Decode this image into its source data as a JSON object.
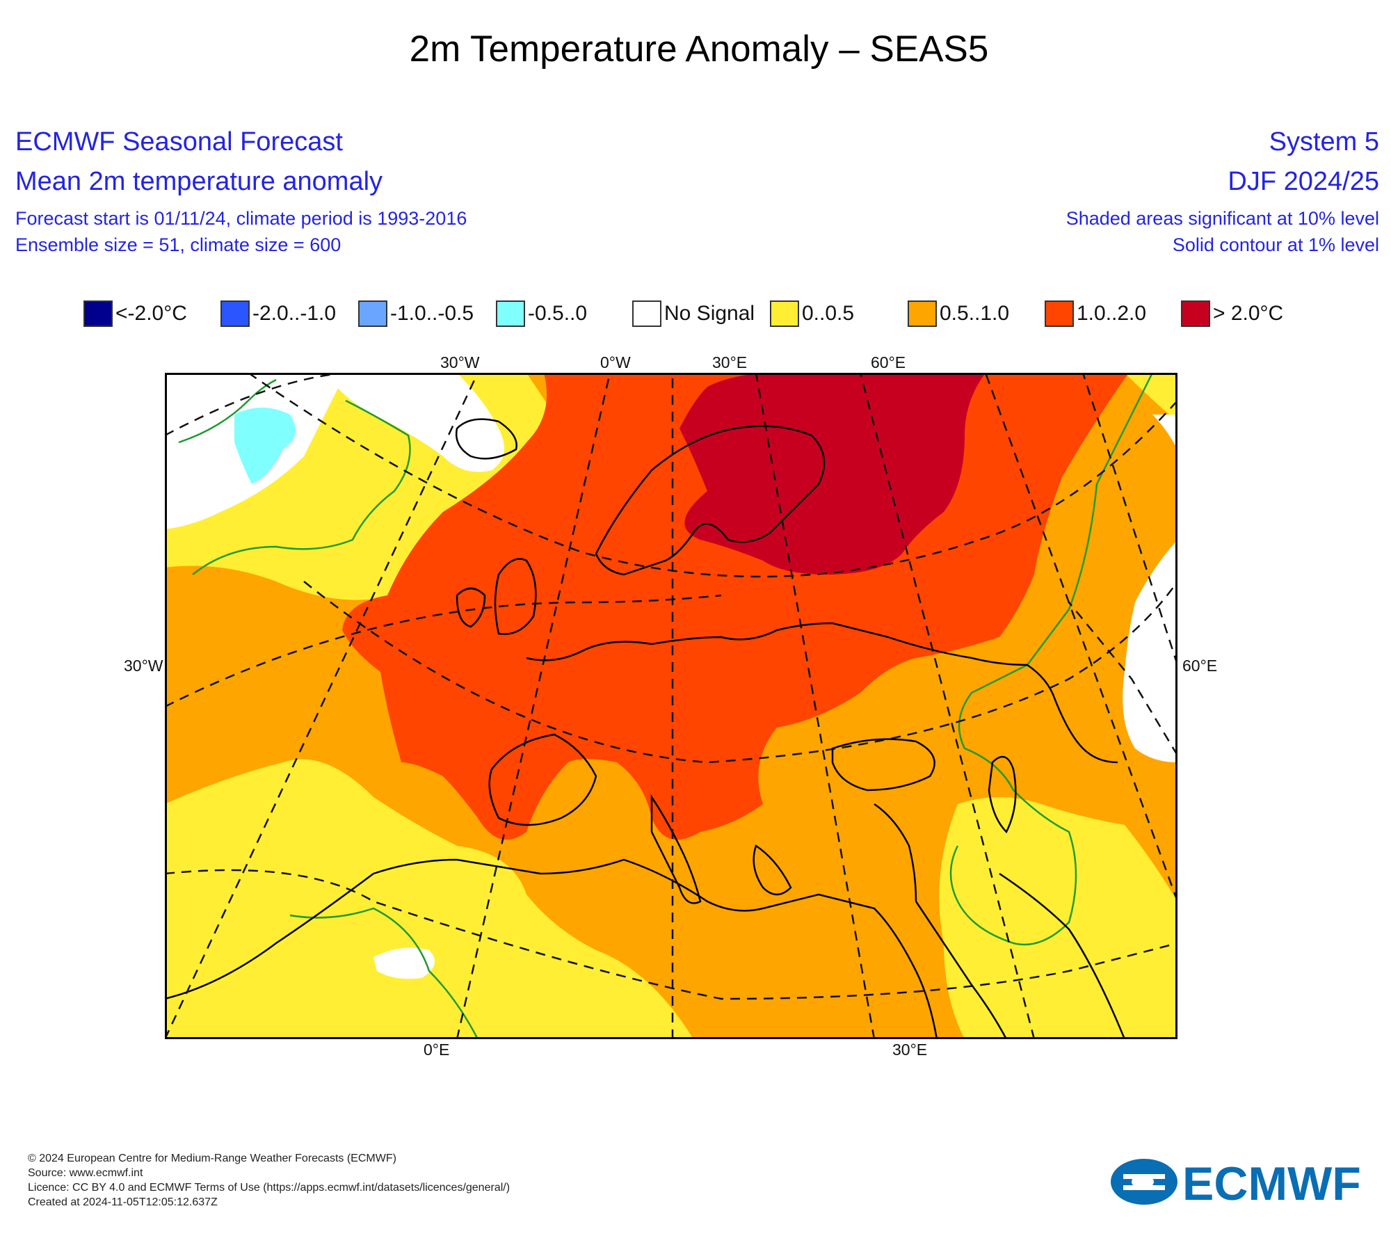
{
  "title": "2m Temperature Anomaly – SEAS5",
  "header": {
    "left": {
      "line1": "ECMWF Seasonal Forecast",
      "line2": "Mean 2m temperature anomaly",
      "line3": "Forecast start is 01/11/24, climate period is 1993-2016",
      "line4": "Ensemble size = 51, climate size = 600"
    },
    "right": {
      "line1": "System 5",
      "line2": "DJF 2024/25",
      "line3": "Shaded areas significant at 10% level",
      "line4": "Solid contour at 1% level"
    }
  },
  "legend": [
    {
      "label": "<-2.0°C",
      "color": "#00008c"
    },
    {
      "label": "-2.0..-1.0",
      "color": "#2b55ff"
    },
    {
      "label": "-1.0..-0.5",
      "color": "#6aa6ff"
    },
    {
      "label": "-0.5..0",
      "color": "#80ffff"
    },
    {
      "label": "No Signal",
      "color": "#ffffff"
    },
    {
      "label": "0..0.5",
      "color": "#ffee33"
    },
    {
      "label": "0.5..1.0",
      "color": "#ffa500"
    },
    {
      "label": "1.0..2.0",
      "color": "#ff4500"
    },
    {
      "label": "> 2.0°C",
      "color": "#c80020"
    }
  ],
  "map": {
    "axis_labels": {
      "top": [
        "30°W",
        "0°W",
        "30°E",
        "60°E"
      ],
      "left": "30°W",
      "right": "60°E",
      "bottom": [
        "0°E",
        "30°E"
      ]
    },
    "colors": {
      "strong_warm": "#c80020",
      "warm": "#ff4500",
      "moderate": "#ffa500",
      "weak": "#ffee33",
      "no_signal": "#ffffff",
      "slight_cold": "#80ffff",
      "coast": "#000000",
      "significance_contour": "#1f9a2f"
    }
  },
  "footer": {
    "line1": "© 2024 European Centre for Medium-Range Weather Forecasts (ECMWF)",
    "line2": "Source: www.ecmwf.int",
    "line3": "Licence: CC BY 4.0 and ECMWF Terms of Use (https://apps.ecmwf.int/datasets/licences/general/)",
    "line4": "Created at 2024-11-05T12:05:12.637Z"
  },
  "logo": {
    "text": "ECMWF",
    "color": "#0a6eb4"
  }
}
